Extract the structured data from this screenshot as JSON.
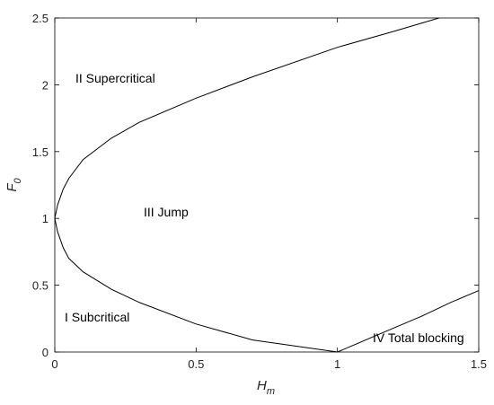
{
  "chart_data": {
    "type": "line",
    "xlabel": "H",
    "xlabel_sub": "m",
    "ylabel": "F",
    "ylabel_sub": "0",
    "xlim": [
      0,
      1.5
    ],
    "xticks": [
      0,
      0.5,
      1,
      1.5
    ],
    "ylim": [
      0,
      2.5
    ],
    "yticks": [
      0,
      0.5,
      1,
      1.5,
      2,
      2.5
    ],
    "series": [
      {
        "color": "#000000",
        "x": [
          0,
          0.01,
          0.03,
          0.05,
          0.1,
          0.2,
          0.3,
          0.5,
          0.7,
          1,
          1.2,
          1.36
        ],
        "values": [
          1,
          1.1,
          1.22,
          1.3,
          1.44,
          1.6,
          1.72,
          1.9,
          2.06,
          2.28,
          2.4,
          2.5
        ]
      },
      {
        "color": "#000000",
        "x": [
          0,
          0.01,
          0.03,
          0.05,
          0.1,
          0.2,
          0.3,
          0.5,
          0.7,
          1
        ],
        "values": [
          1,
          0.9,
          0.78,
          0.7,
          0.6,
          0.47,
          0.37,
          0.21,
          0.09,
          0
        ]
      },
      {
        "color": "#000000",
        "x": [
          1,
          1.1,
          1.2,
          1.3,
          1.4,
          1.5
        ],
        "values": [
          0,
          0.09,
          0.18,
          0.27,
          0.37,
          0.46
        ]
      }
    ],
    "annotations": [
      "II Supercritical",
      "III Jump",
      "I Subcritical",
      "IV Total blocking"
    ]
  }
}
